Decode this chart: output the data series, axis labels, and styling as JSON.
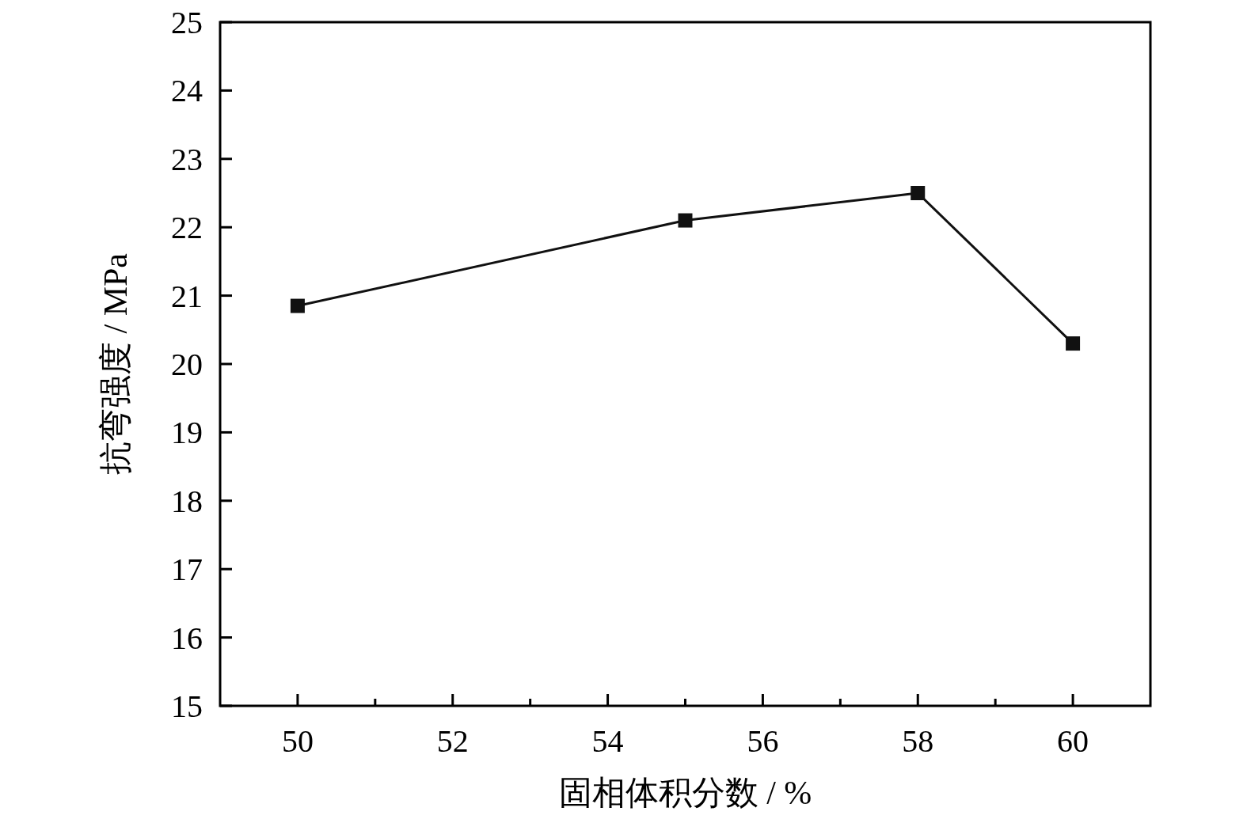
{
  "chart_data": {
    "type": "line",
    "xlabel": "固相体积分数 / %",
    "ylabel": "抗弯强度 / MPa",
    "x": [
      50,
      55,
      58,
      60
    ],
    "values": [
      20.85,
      22.1,
      22.5,
      20.3
    ],
    "color": "#111111",
    "marker": "square",
    "line_style": "solid",
    "xlim": [
      49,
      61
    ],
    "ylim": [
      15,
      25
    ],
    "xticks": [
      50,
      {
        "value": 51,
        "label": null
      },
      52,
      {
        "value": 53,
        "label": null
      },
      54,
      {
        "value": 55,
        "label": null
      },
      56,
      {
        "value": 57,
        "label": null
      },
      58,
      {
        "value": 59,
        "label": null
      },
      60
    ],
    "yticks": [
      15,
      16,
      17,
      18,
      19,
      20,
      21,
      22,
      23,
      24,
      25
    ]
  }
}
